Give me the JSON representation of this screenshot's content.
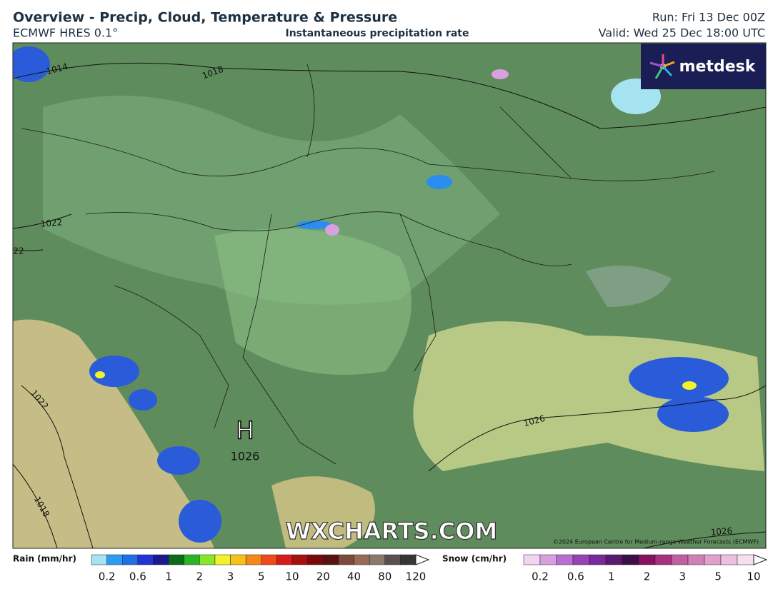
{
  "header": {
    "title": "Overview - Precip, Cloud, Temperature & Pressure",
    "model": "ECMWF HRES 0.1°",
    "product": "Instantaneous precipitation rate",
    "run": "Run: Fri 13 Dec 00Z",
    "valid": "Valid: Wed 25 Dec 18:00 UTC"
  },
  "logo": "metdesk",
  "map": {
    "isobar_labels": [
      "1014",
      "1018",
      "1022",
      "22",
      "1022",
      "1026",
      "1018",
      "1026"
    ],
    "high": {
      "symbol": "H",
      "pressure": "1026"
    },
    "watermark": "WXCHARTS.COM",
    "copyright": "©2024 European Centre for Medium-range Weather Forecasts (ECMWF)"
  },
  "legend": {
    "rain": {
      "label": "Rain (mm/hr)",
      "ticks": [
        0.2,
        0.6,
        1,
        2,
        3,
        5,
        10,
        20,
        40,
        80,
        120
      ],
      "colors": [
        "#a6e3f0",
        "#2a9df4",
        "#1f6fe8",
        "#2433d6",
        "#1a1a8c",
        "#0b6b16",
        "#29b526",
        "#86e62a",
        "#f2f22a",
        "#f5c21b",
        "#f5871b",
        "#ee4a1d",
        "#d41c1c",
        "#a80f0f",
        "#7a0a0a",
        "#5a1111",
        "#7a4a3a",
        "#9a6a55",
        "#8a7a6a",
        "#5a5050",
        "#3a3535"
      ]
    },
    "snow": {
      "label": "Snow (cm/hr)",
      "ticks": [
        0.2,
        0.6,
        1,
        2,
        3,
        5,
        10
      ],
      "colors": [
        "#f2d4f0",
        "#d9a0e0",
        "#b96ed0",
        "#9a40b8",
        "#7a2a98",
        "#5a1a70",
        "#3a1048",
        "#8a1060",
        "#a83080",
        "#c060a0",
        "#d080b8",
        "#e0a0cc",
        "#ecc0de",
        "#f6e0ee"
      ]
    }
  }
}
